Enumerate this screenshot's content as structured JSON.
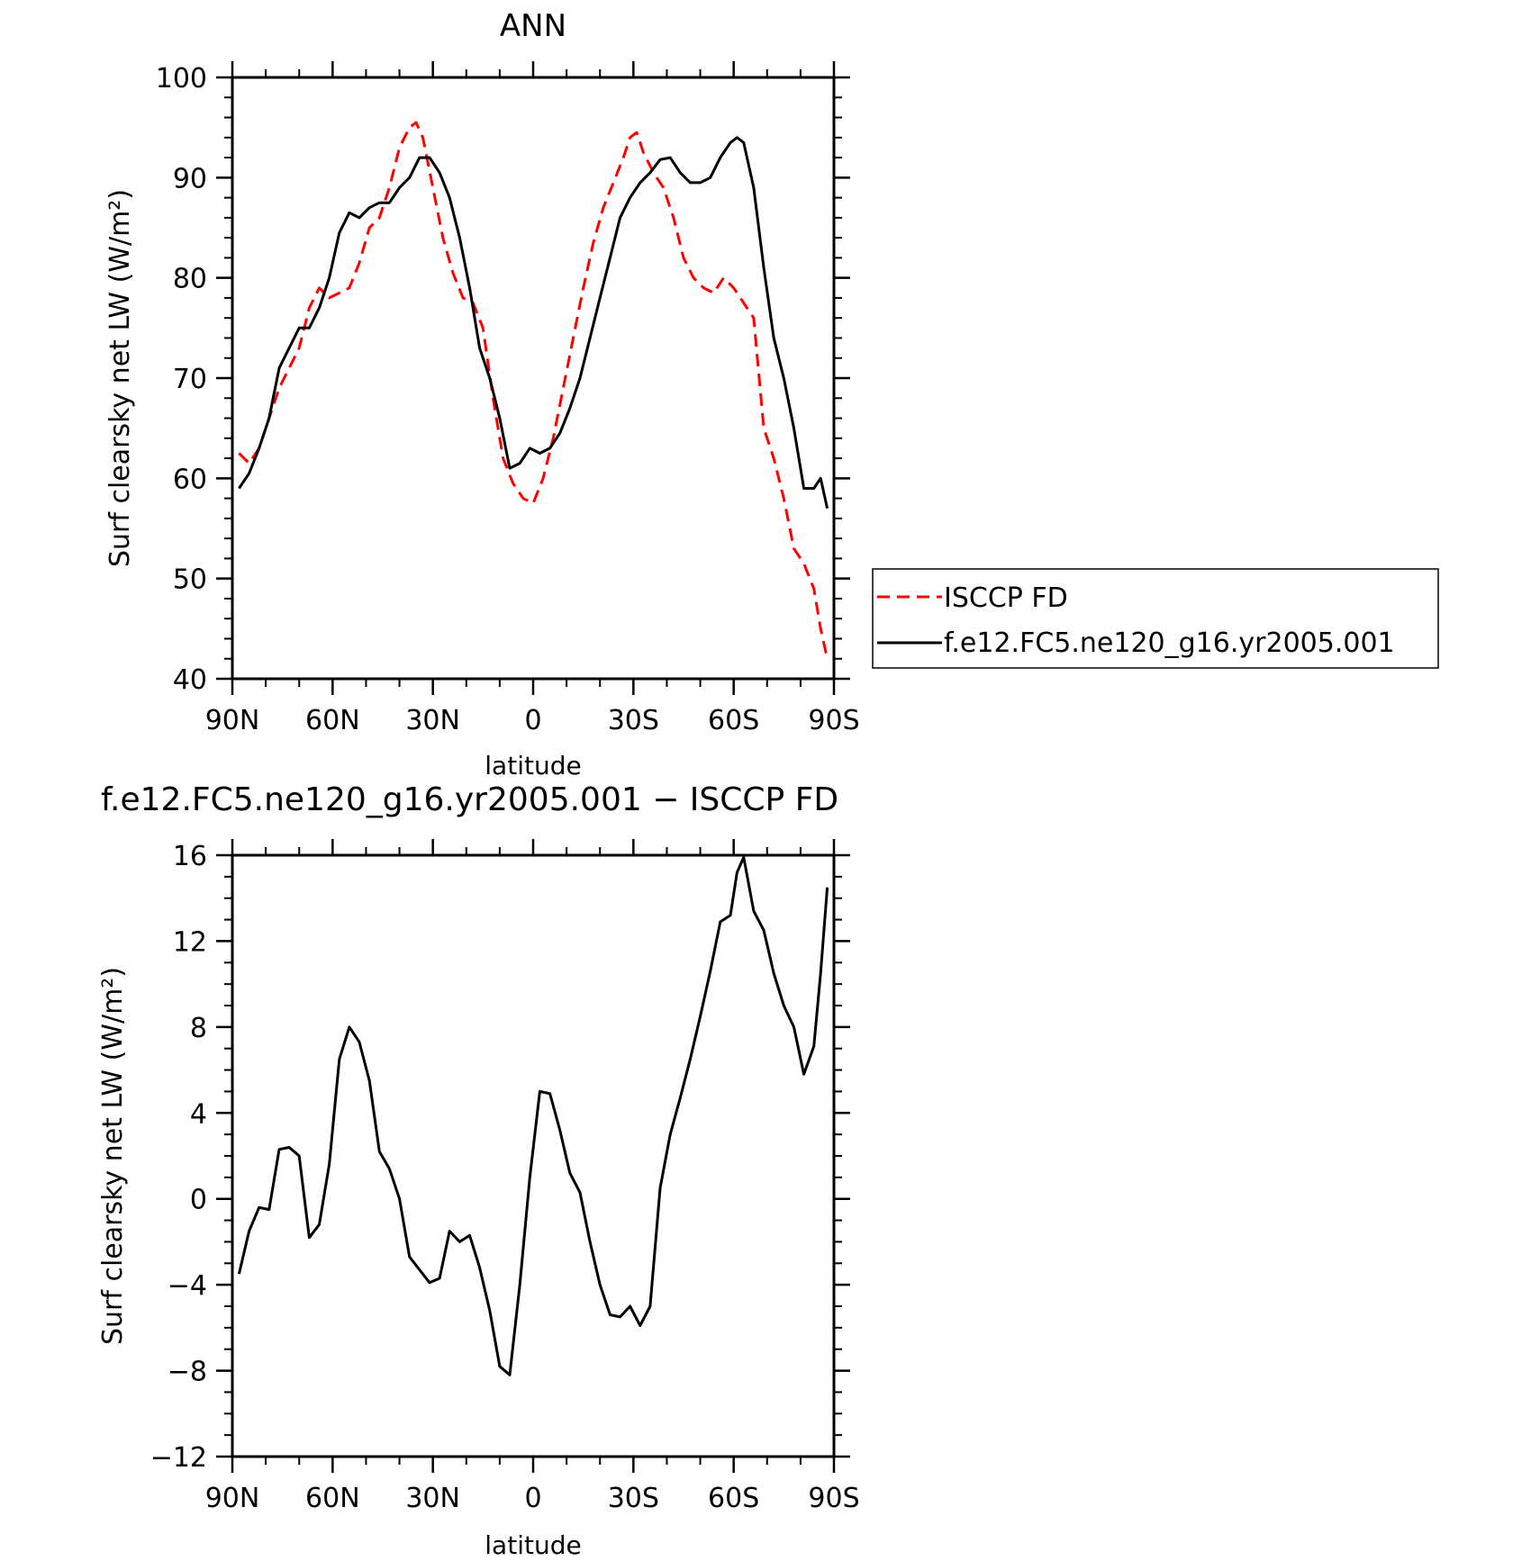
{
  "chart_data": [
    {
      "type": "line",
      "title": "ANN",
      "xlabel": "latitude",
      "ylabel": "Surf clearsky net LW (W/m²)",
      "xlim": [
        -90,
        90
      ],
      "ylim": [
        40,
        100
      ],
      "x_ticks": [
        {
          "value": -90,
          "label": "90N"
        },
        {
          "value": -60,
          "label": "60N"
        },
        {
          "value": -30,
          "label": "30N"
        },
        {
          "value": 0,
          "label": "0"
        },
        {
          "value": 30,
          "label": "30S"
        },
        {
          "value": 60,
          "label": "60S"
        },
        {
          "value": 90,
          "label": "90S"
        }
      ],
      "y_ticks": [
        {
          "value": 40,
          "label": "40"
        },
        {
          "value": 50,
          "label": "50"
        },
        {
          "value": 60,
          "label": "60"
        },
        {
          "value": 70,
          "label": "70"
        },
        {
          "value": 80,
          "label": "80"
        },
        {
          "value": 90,
          "label": "90"
        },
        {
          "value": 100,
          "label": "100"
        }
      ],
      "legend": "right",
      "series": [
        {
          "name": "ISCCP FD",
          "color": "#ff0000",
          "dash": "dashed",
          "x": [
            -88,
            -85,
            -82,
            -79,
            -76,
            -73,
            -70,
            -67,
            -64,
            -61,
            -58,
            -55,
            -52,
            -49,
            -46,
            -43,
            -40,
            -37,
            -35,
            -33,
            -30,
            -27,
            -24,
            -21,
            -18,
            -15,
            -12,
            -9,
            -6,
            -3,
            0,
            3,
            6,
            9,
            12,
            15,
            18,
            21,
            24,
            27,
            29,
            31,
            33,
            36,
            39,
            42,
            45,
            48,
            51,
            54,
            57,
            60,
            63,
            66,
            69,
            72,
            75,
            78,
            81,
            84,
            86,
            88
          ],
          "y": [
            62.5,
            61.5,
            63,
            66,
            69,
            71,
            73,
            77,
            79,
            78,
            78.5,
            79,
            81.5,
            85,
            86,
            89,
            93,
            95,
            95.5,
            94,
            89,
            84,
            80.5,
            78,
            77.5,
            75,
            68,
            62,
            59.5,
            58,
            57.5,
            60,
            64,
            69,
            74,
            79,
            83.5,
            87,
            89.5,
            92,
            94,
            94.5,
            92.5,
            90.5,
            89,
            86,
            82,
            80,
            79,
            78.5,
            80,
            79,
            77.5,
            76,
            65,
            62,
            58,
            53,
            51.5,
            49,
            45,
            42
          ]
        },
        {
          "name": "f.e12.FC5.ne120_g16.yr2005.001",
          "color": "#000000",
          "dash": "solid",
          "x": [
            -88,
            -85,
            -82,
            -79,
            -76,
            -73,
            -70,
            -67,
            -64,
            -61,
            -58,
            -55,
            -52,
            -49,
            -46,
            -43,
            -40,
            -37,
            -34,
            -31,
            -28,
            -25,
            -22,
            -19,
            -16,
            -13,
            -10,
            -7,
            -4,
            -1,
            2,
            5,
            8,
            11,
            14,
            17,
            20,
            23,
            26,
            29,
            32,
            35,
            38,
            41,
            44,
            47,
            50,
            53,
            56,
            59,
            61,
            63,
            66,
            69,
            72,
            75,
            78,
            81,
            84,
            86,
            88
          ],
          "y": [
            59,
            60.5,
            63,
            66,
            71,
            73,
            75,
            75,
            77,
            80,
            84.5,
            86.5,
            86,
            87,
            87.5,
            87.5,
            89,
            90,
            92,
            92,
            90.5,
            88,
            84,
            79,
            73,
            70,
            66,
            61,
            61.5,
            63,
            62.5,
            63,
            64.5,
            67,
            70,
            74,
            78,
            82,
            86,
            88,
            89.5,
            90.5,
            91.8,
            92,
            90.5,
            89.5,
            89.5,
            90,
            92,
            93.5,
            94,
            93.5,
            89,
            81,
            74,
            70,
            65,
            59,
            59,
            60,
            57
          ]
        }
      ]
    },
    {
      "type": "line",
      "title": "f.e12.FC5.ne120_g16.yr2005.001 − ISCCP FD",
      "xlabel": "latitude",
      "ylabel": "Surf clearsky net LW (W/m²)",
      "xlim": [
        -90,
        90
      ],
      "ylim": [
        -12,
        16
      ],
      "x_ticks": [
        {
          "value": -90,
          "label": "90N"
        },
        {
          "value": -60,
          "label": "60N"
        },
        {
          "value": -30,
          "label": "30N"
        },
        {
          "value": 0,
          "label": "0"
        },
        {
          "value": 30,
          "label": "30S"
        },
        {
          "value": 60,
          "label": "60S"
        },
        {
          "value": 90,
          "label": "90S"
        }
      ],
      "y_ticks": [
        {
          "value": -12,
          "label": "−12"
        },
        {
          "value": -8,
          "label": "−8"
        },
        {
          "value": -4,
          "label": "−4"
        },
        {
          "value": 0,
          "label": "0"
        },
        {
          "value": 4,
          "label": "4"
        },
        {
          "value": 8,
          "label": "8"
        },
        {
          "value": 12,
          "label": "12"
        },
        {
          "value": 16,
          "label": "16"
        }
      ],
      "series": [
        {
          "color": "#000000",
          "dash": "solid",
          "x": [
            -88,
            -85,
            -82,
            -79,
            -76,
            -73,
            -70,
            -67,
            -64,
            -61,
            -58,
            -55,
            -52,
            -49,
            -46,
            -43,
            -40,
            -37,
            -34,
            -31,
            -28,
            -25,
            -22,
            -19,
            -16,
            -13,
            -10,
            -7,
            -4,
            -1,
            2,
            5,
            8,
            11,
            14,
            17,
            20,
            23,
            26,
            29,
            32,
            35,
            38,
            41,
            44,
            47,
            50,
            53,
            56,
            59,
            61,
            63,
            66,
            69,
            72,
            75,
            78,
            81,
            84,
            86,
            88
          ],
          "y": [
            -3.5,
            -1.5,
            -0.4,
            -0.5,
            2.3,
            2.4,
            2.0,
            -1.8,
            -1.2,
            1.6,
            6.5,
            8.0,
            7.3,
            5.5,
            2.2,
            1.4,
            0,
            -2.7,
            -3.3,
            -3.9,
            -3.7,
            -1.5,
            -2.0,
            -1.7,
            -3.2,
            -5.2,
            -7.8,
            -8.2,
            -4.0,
            1.0,
            5.0,
            4.9,
            3.2,
            1.2,
            0.3,
            -2.0,
            -4.0,
            -5.4,
            -5.5,
            -5.0,
            -5.9,
            -5.0,
            0.5,
            3.0,
            4.7,
            6.5,
            8.5,
            10.6,
            12.9,
            13.2,
            15.2,
            15.9,
            13.4,
            12.5,
            10.5,
            9.0,
            8.0,
            5.8,
            7.1,
            10.5,
            14.5
          ]
        }
      ]
    }
  ]
}
